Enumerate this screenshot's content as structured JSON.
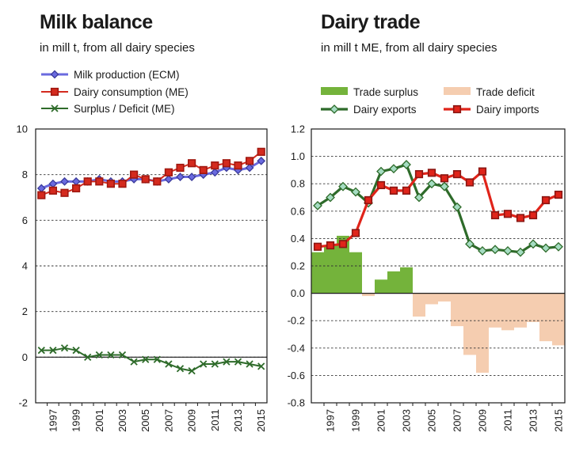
{
  "colors": {
    "production": "#6a6adf",
    "consumption": "#d42a1e",
    "surplus_line": "#2e6b2a",
    "trade_surplus": "#74b33b",
    "trade_deficit": "#f5cdb0",
    "exports": "#2e6b2a",
    "exports_marker": "#a5dcc2",
    "imports": "#e0241a",
    "imports_marker": "#8a1612"
  },
  "chart_data": [
    {
      "type": "line",
      "title": "Milk balance",
      "subtitle": "in mill t, from all dairy species",
      "x": [
        1996,
        1997,
        1998,
        1999,
        2000,
        2001,
        2002,
        2003,
        2004,
        2005,
        2006,
        2007,
        2008,
        2009,
        2010,
        2011,
        2012,
        2013,
        2014,
        2015
      ],
      "xticks": [
        "1997",
        "1999",
        "2001",
        "2003",
        "2005",
        "2007",
        "2009",
        "2011",
        "2013",
        "2015"
      ],
      "ylim": [
        -2,
        10
      ],
      "yticks": [
        "10",
        "8",
        "6",
        "4",
        "2",
        "0",
        "-2"
      ],
      "series": [
        {
          "name": "Milk production (ECM)",
          "values": [
            7.4,
            7.6,
            7.7,
            7.7,
            7.7,
            7.8,
            7.7,
            7.7,
            7.8,
            7.8,
            7.7,
            7.8,
            7.9,
            7.9,
            8.0,
            8.1,
            8.3,
            8.2,
            8.3,
            8.6
          ]
        },
        {
          "name": "Dairy consumption (ME)",
          "values": [
            7.1,
            7.3,
            7.2,
            7.4,
            7.7,
            7.7,
            7.6,
            7.6,
            8.0,
            7.8,
            7.7,
            8.1,
            8.3,
            8.5,
            8.2,
            8.4,
            8.5,
            8.4,
            8.6,
            9.0
          ]
        },
        {
          "name": "Surplus / Deficit (ME)",
          "values": [
            0.3,
            0.3,
            0.4,
            0.3,
            0.0,
            0.1,
            0.1,
            0.1,
            -0.2,
            -0.1,
            -0.1,
            -0.3,
            -0.5,
            -0.6,
            -0.3,
            -0.3,
            -0.2,
            -0.2,
            -0.3,
            -0.4
          ]
        }
      ]
    },
    {
      "type": "bar+line",
      "title": "Dairy trade",
      "subtitle": "in mill t ME, from all dairy species",
      "x": [
        1996,
        1997,
        1998,
        1999,
        2000,
        2001,
        2002,
        2003,
        2004,
        2005,
        2006,
        2007,
        2008,
        2009,
        2010,
        2011,
        2012,
        2013,
        2014,
        2015
      ],
      "xticks": [
        "1997",
        "1999",
        "2001",
        "2003",
        "2005",
        "2007",
        "2009",
        "2011",
        "2013",
        "2015"
      ],
      "ylim": [
        -0.8,
        1.2
      ],
      "yticks": [
        "1.2",
        "1.0",
        "0.8",
        "0.6",
        "0.4",
        "0.2",
        "0.0",
        "-0.2",
        "-0.4",
        "-0.6",
        "-0.8"
      ],
      "bars": {
        "name_surplus": "Trade surplus",
        "name_deficit": "Trade deficit",
        "values": [
          0.3,
          0.35,
          0.42,
          0.3,
          -0.02,
          0.1,
          0.16,
          0.19,
          -0.17,
          -0.08,
          -0.06,
          -0.24,
          -0.45,
          -0.58,
          -0.25,
          -0.27,
          -0.25,
          -0.21,
          -0.35,
          -0.38
        ]
      },
      "series": [
        {
          "name": "Dairy exports",
          "values": [
            0.64,
            0.7,
            0.78,
            0.74,
            0.66,
            0.89,
            0.91,
            0.94,
            0.7,
            0.8,
            0.78,
            0.63,
            0.36,
            0.31,
            0.32,
            0.31,
            0.3,
            0.36,
            0.33,
            0.34
          ]
        },
        {
          "name": "Dairy imports",
          "values": [
            0.34,
            0.35,
            0.36,
            0.44,
            0.68,
            0.79,
            0.75,
            0.75,
            0.87,
            0.88,
            0.84,
            0.87,
            0.81,
            0.89,
            0.57,
            0.58,
            0.55,
            0.57,
            0.68,
            0.72
          ]
        }
      ]
    }
  ]
}
